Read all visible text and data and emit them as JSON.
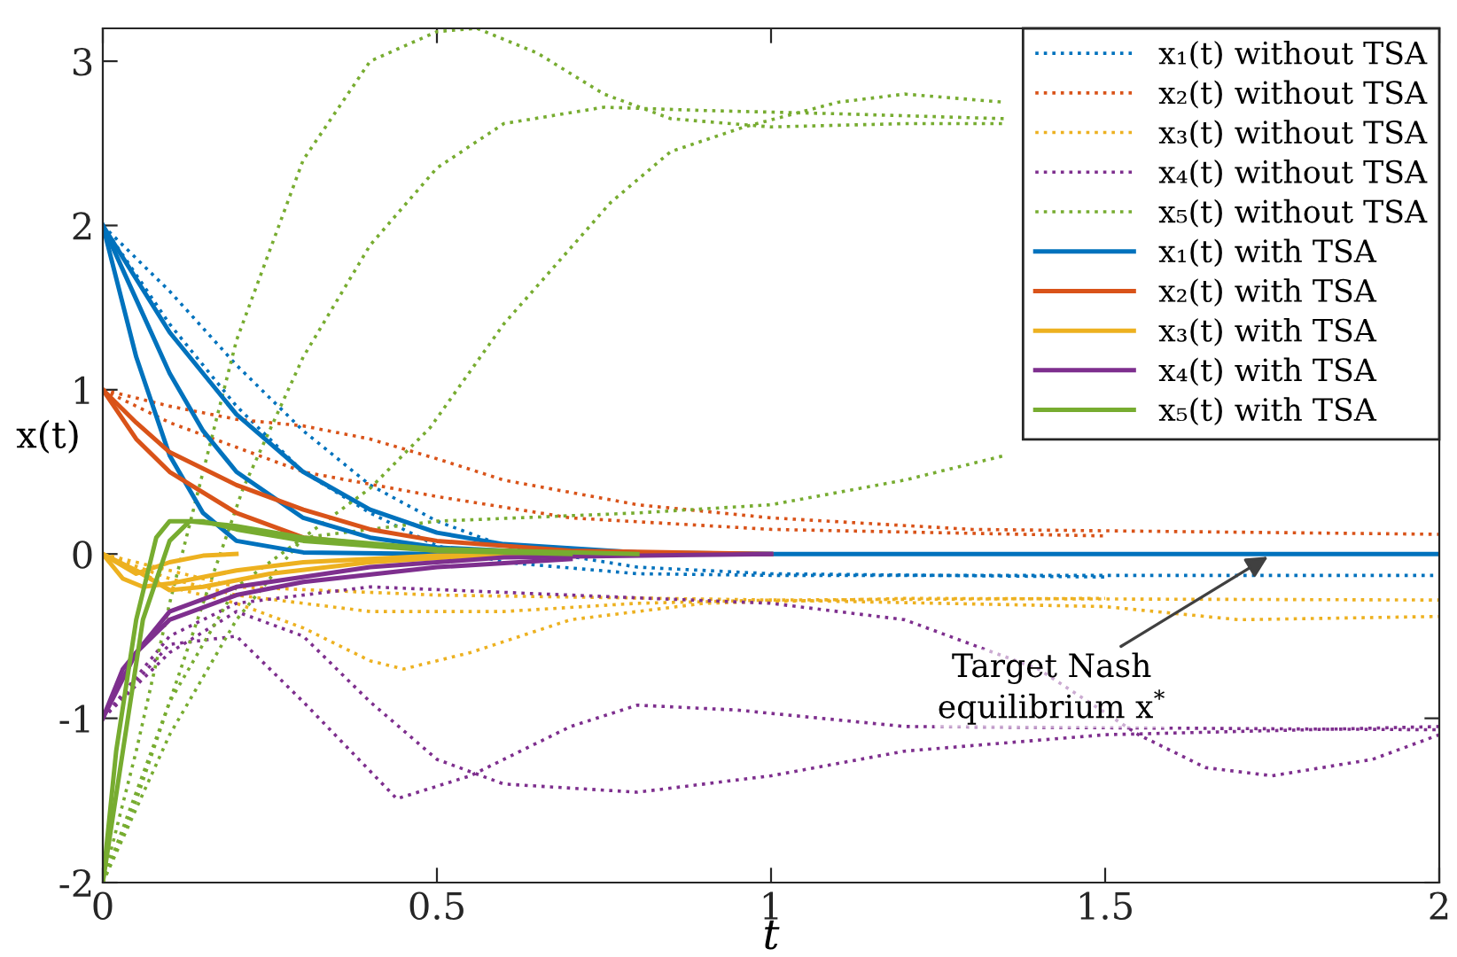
{
  "chart_data": {
    "type": "line",
    "xlabel": "t",
    "ylabel": "x(t)",
    "xlim": [
      0,
      2
    ],
    "ylim": [
      -2,
      3.2
    ],
    "xticks": [
      0,
      0.5,
      1,
      1.5,
      2
    ],
    "yticks": [
      -2,
      -1,
      0,
      1,
      2,
      3
    ],
    "grid": false,
    "legend": "top right",
    "marker": "none",
    "annotations": [
      {
        "text": "Target Nash\nequilibrium x$^{*}$",
        "x": 1.75,
        "y": 0
      }
    ],
    "series": [
      {
        "name": "x₁(t) without TSA",
        "color": "#0072bd",
        "line_style": "dotted",
        "x": [
          0,
          0.1,
          0.2,
          0.3,
          0.4,
          0.5,
          0.6,
          0.8,
          1.0,
          2
        ],
        "values": [
          2,
          1.4,
          0.9,
          0.5,
          0.25,
          0.05,
          -0.05,
          -0.12,
          -0.13,
          -0.13
        ]
      },
      {
        "color": "#0072bd",
        "line_style": "dotted",
        "x": [
          0,
          0.1,
          0.2,
          0.3,
          0.4,
          0.5,
          0.6,
          0.8,
          1.0,
          1.5
        ],
        "values": [
          2,
          1.6,
          1.15,
          0.75,
          0.42,
          0.2,
          0.05,
          -0.08,
          -0.12,
          -0.14
        ]
      },
      {
        "name": "x₂(t) without TSA",
        "color": "#d95319",
        "line_style": "dotted",
        "x": [
          0,
          0.1,
          0.2,
          0.3,
          0.4,
          0.5,
          0.6,
          0.8,
          1.0,
          1.3,
          2
        ],
        "values": [
          1,
          0.9,
          0.82,
          0.78,
          0.7,
          0.58,
          0.45,
          0.3,
          0.22,
          0.15,
          0.12
        ]
      },
      {
        "color": "#d95319",
        "line_style": "dotted",
        "x": [
          0,
          0.1,
          0.2,
          0.3,
          0.5,
          0.7,
          1.0,
          1.5
        ],
        "values": [
          1,
          0.8,
          0.65,
          0.5,
          0.35,
          0.22,
          0.15,
          0.11
        ]
      },
      {
        "name": "x₃(t) without TSA",
        "color": "#edb120",
        "line_style": "dotted",
        "x": [
          0,
          0.1,
          0.2,
          0.3,
          0.4,
          0.45,
          0.55,
          0.7,
          0.9,
          1.2,
          2
        ],
        "values": [
          0,
          -0.2,
          -0.3,
          -0.45,
          -0.65,
          -0.7,
          -0.6,
          -0.4,
          -0.3,
          -0.27,
          -0.28
        ]
      },
      {
        "color": "#edb120",
        "line_style": "dotted",
        "x": [
          0,
          0.1,
          0.2,
          0.4,
          0.6,
          0.8,
          1.0,
          1.5
        ],
        "values": [
          0,
          -0.15,
          -0.25,
          -0.35,
          -0.35,
          -0.3,
          -0.28,
          -0.27
        ]
      },
      {
        "color": "#edb120",
        "line_style": "dotted",
        "x": [
          0,
          0.2,
          0.5,
          1.0,
          1.5,
          1.7,
          2
        ],
        "values": [
          0,
          -0.2,
          -0.25,
          -0.28,
          -0.32,
          -0.4,
          -0.38
        ]
      },
      {
        "name": "x₄(t) without TSA",
        "color": "#7e2f8e",
        "line_style": "dotted",
        "x": [
          0,
          0.1,
          0.2,
          0.3,
          0.4,
          0.5,
          0.6,
          0.8,
          1.0,
          1.2,
          1.5,
          2
        ],
        "values": [
          -1,
          -0.6,
          -0.35,
          -0.5,
          -0.9,
          -1.25,
          -1.4,
          -1.45,
          -1.35,
          -1.2,
          -1.1,
          -1.05
        ]
      },
      {
        "color": "#7e2f8e",
        "line_style": "dotted",
        "x": [
          0,
          0.1,
          0.2,
          0.3,
          0.44,
          0.55,
          0.7,
          0.8,
          0.95,
          1.2,
          2
        ],
        "values": [
          -1,
          -0.55,
          -0.5,
          -0.9,
          -1.49,
          -1.35,
          -1.05,
          -0.92,
          -0.95,
          -1.05,
          -1.07
        ]
      },
      {
        "color": "#7e2f8e",
        "line_style": "dotted",
        "x": [
          0,
          0.1,
          0.2,
          0.4,
          0.7,
          1.0,
          1.2,
          1.4,
          1.55,
          1.65,
          1.75,
          1.9,
          2
        ],
        "values": [
          -1,
          -0.5,
          -0.3,
          -0.2,
          -0.25,
          -0.3,
          -0.4,
          -0.7,
          -1.1,
          -1.3,
          -1.35,
          -1.25,
          -1.1
        ]
      },
      {
        "name": "x₅(t) without TSA",
        "color": "#77ac30",
        "line_style": "dotted",
        "x": [
          0,
          0.05,
          0.1,
          0.15,
          0.2,
          0.3,
          0.4,
          0.5,
          0.56,
          0.65,
          0.75,
          0.85,
          1.0,
          1.2,
          1.35
        ],
        "values": [
          -2,
          -1.2,
          -0.3,
          0.5,
          1.3,
          2.4,
          3.0,
          3.18,
          3.2,
          3.05,
          2.8,
          2.65,
          2.6,
          2.62,
          2.62
        ]
      },
      {
        "color": "#77ac30",
        "line_style": "dotted",
        "x": [
          0,
          0.05,
          0.1,
          0.15,
          0.21,
          0.3,
          0.4,
          0.5,
          0.6,
          0.75,
          0.9,
          1.1,
          1.35
        ],
        "values": [
          -2,
          -1.5,
          -0.9,
          -0.3,
          0.4,
          1.2,
          1.88,
          2.35,
          2.62,
          2.72,
          2.7,
          2.68,
          2.65
        ]
      },
      {
        "color": "#77ac30",
        "line_style": "dotted",
        "x": [
          0,
          0.1,
          0.2,
          0.3,
          0.4,
          0.49,
          0.6,
          0.76,
          0.85,
          0.96,
          1.1,
          1.2,
          1.35
        ],
        "values": [
          -2,
          -1.1,
          -0.4,
          0.1,
          0.4,
          0.77,
          1.4,
          2.14,
          2.45,
          2.6,
          2.75,
          2.8,
          2.75
        ]
      },
      {
        "color": "#77ac30",
        "line_style": "dotted",
        "x": [
          0,
          0.1,
          0.2,
          0.3,
          0.5,
          0.8,
          1.0,
          1.2,
          1.35
        ],
        "values": [
          -2,
          -0.9,
          -0.2,
          0.1,
          0.2,
          0.25,
          0.3,
          0.45,
          0.6
        ]
      },
      {
        "name": "x₁(t) with TSA",
        "color": "#0072bd",
        "line_style": "solid",
        "x": [
          0,
          0.05,
          0.1,
          0.15,
          0.2,
          0.3,
          0.5,
          2
        ],
        "values": [
          2,
          1.2,
          0.6,
          0.25,
          0.08,
          0.01,
          0,
          0
        ]
      },
      {
        "color": "#0072bd",
        "line_style": "solid",
        "x": [
          0,
          0.05,
          0.1,
          0.15,
          0.2,
          0.3,
          0.4,
          0.5,
          0.7
        ],
        "values": [
          2,
          1.55,
          1.1,
          0.75,
          0.5,
          0.22,
          0.1,
          0.04,
          0
        ]
      },
      {
        "color": "#0072bd",
        "line_style": "solid",
        "x": [
          0,
          0.1,
          0.2,
          0.3,
          0.4,
          0.5,
          0.6,
          0.8,
          1.0
        ],
        "values": [
          2,
          1.35,
          0.85,
          0.5,
          0.27,
          0.13,
          0.06,
          0.01,
          0
        ]
      },
      {
        "name": "x₂(t) with TSA",
        "color": "#d95319",
        "line_style": "solid",
        "x": [
          0,
          0.05,
          0.1,
          0.2,
          0.3,
          0.4,
          0.5,
          0.7,
          1.0
        ],
        "values": [
          1,
          0.8,
          0.62,
          0.42,
          0.27,
          0.15,
          0.08,
          0.02,
          0
        ]
      },
      {
        "color": "#d95319",
        "line_style": "solid",
        "x": [
          0,
          0.05,
          0.1,
          0.2,
          0.3,
          0.5,
          0.7
        ],
        "values": [
          1,
          0.7,
          0.5,
          0.25,
          0.1,
          0.02,
          0
        ]
      },
      {
        "name": "x₃(t) with TSA",
        "color": "#edb120",
        "line_style": "solid",
        "x": [
          0,
          0.03,
          0.06,
          0.1,
          0.2,
          0.3,
          0.5,
          0.7
        ],
        "values": [
          0,
          -0.15,
          -0.2,
          -0.18,
          -0.1,
          -0.05,
          -0.01,
          0
        ]
      },
      {
        "color": "#edb120",
        "line_style": "solid",
        "x": [
          0,
          0.05,
          0.1,
          0.15,
          0.25,
          0.4,
          0.6
        ],
        "values": [
          0,
          -0.1,
          -0.22,
          -0.2,
          -0.12,
          -0.05,
          0
        ]
      },
      {
        "color": "#edb120",
        "line_style": "solid",
        "x": [
          0,
          0.05,
          0.1,
          0.15,
          0.2
        ],
        "values": [
          0,
          -0.12,
          -0.05,
          -0.01,
          0
        ]
      },
      {
        "name": "x₄(t) with TSA",
        "color": "#7e2f8e",
        "line_style": "solid",
        "x": [
          0,
          0.05,
          0.1,
          0.2,
          0.3,
          0.5,
          0.7
        ],
        "values": [
          -1,
          -0.6,
          -0.4,
          -0.25,
          -0.17,
          -0.08,
          -0.03
        ]
      },
      {
        "color": "#7e2f8e",
        "line_style": "solid",
        "x": [
          0,
          0.03,
          0.1,
          0.2,
          0.4,
          0.6,
          1.0
        ],
        "values": [
          -1,
          -0.7,
          -0.35,
          -0.2,
          -0.08,
          -0.02,
          0
        ]
      },
      {
        "name": "x₅(t) with TSA",
        "color": "#77ac30",
        "line_style": "solid",
        "x": [
          0,
          0.02,
          0.05,
          0.08,
          0.1,
          0.15,
          0.2,
          0.3,
          0.5,
          0.7
        ],
        "values": [
          -2,
          -1.2,
          -0.4,
          0.1,
          0.2,
          0.2,
          0.15,
          0.08,
          0.02,
          0
        ]
      },
      {
        "color": "#77ac30",
        "line_style": "solid",
        "x": [
          0,
          0.03,
          0.06,
          0.1,
          0.13,
          0.2,
          0.3,
          0.5,
          0.8
        ],
        "values": [
          -2,
          -1.2,
          -0.4,
          0.08,
          0.2,
          0.17,
          0.1,
          0.03,
          0
        ]
      }
    ]
  }
}
